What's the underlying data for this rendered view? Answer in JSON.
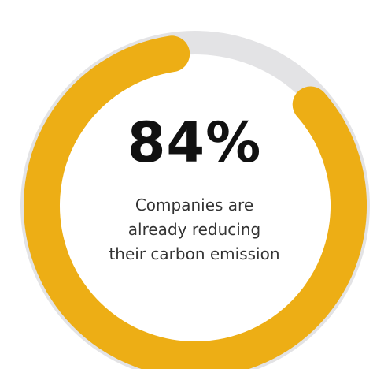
{
  "chart_data": {
    "type": "pie",
    "style": "donut-progress",
    "value_percent": 84,
    "label": "84%",
    "caption_lines": [
      "Companies are",
      "already reducing",
      "their carbon emission"
    ]
  },
  "colors": {
    "progress": "#EDAE15",
    "track": "#E3E3E5",
    "background": "#FFFFFF",
    "text": "#111111"
  }
}
